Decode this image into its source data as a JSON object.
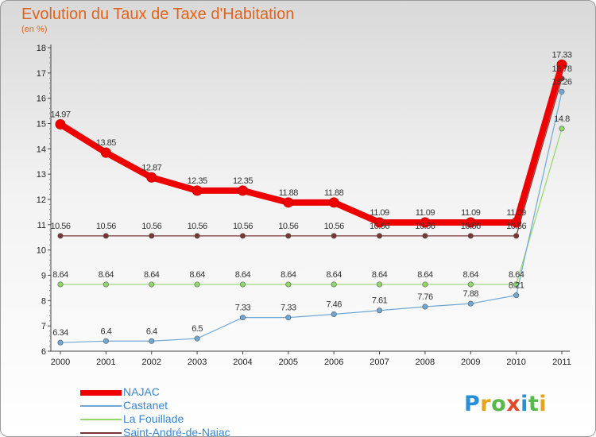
{
  "title": "Evolution du Taux de Taxe d'Habitation",
  "subtitle": "(en %)",
  "brand": {
    "letters": [
      "P",
      "r",
      "o",
      "x",
      "i",
      "t",
      "i"
    ],
    "colors": [
      "#2b8fd8",
      "#e8a21b",
      "#56b94a",
      "#e04a2a",
      "#2b8fd8",
      "#56b94a",
      "#e8a21b"
    ]
  },
  "chart_data": {
    "type": "line",
    "x": [
      "2000",
      "2001",
      "2002",
      "2003",
      "2004",
      "2005",
      "2006",
      "2007",
      "2008",
      "2009",
      "2010",
      "2011"
    ],
    "ylim": [
      6,
      18
    ],
    "yticks": [
      "6",
      "7",
      "8",
      "9",
      "10",
      "11",
      "12",
      "13",
      "14",
      "15",
      "16",
      "17",
      "18"
    ],
    "grid": false,
    "legend_position": "bottom-left",
    "series": [
      {
        "name": "NAJAC",
        "color": "#ee0000",
        "values": [
          14.97,
          13.85,
          12.87,
          12.35,
          12.35,
          11.88,
          11.88,
          11.09,
          11.09,
          11.09,
          11.09,
          17.33
        ],
        "labels": [
          "14.97",
          "13.85",
          "12.87",
          "12.35",
          "12.35",
          "11.88",
          "11.88",
          "11.09",
          "11.09",
          "11.09",
          "11.09",
          "17.33"
        ]
      },
      {
        "name": "Castanet",
        "color": "#6fa8d6",
        "values": [
          6.34,
          6.4,
          6.4,
          6.5,
          7.33,
          7.33,
          7.46,
          7.61,
          7.76,
          7.88,
          8.21,
          16.26
        ],
        "labels": [
          "6.34",
          "6.4",
          "6.4",
          "6.5",
          "7.33",
          "7.33",
          "7.46",
          "7.61",
          "7.76",
          "7.88",
          "8.21",
          "16.26"
        ]
      },
      {
        "name": "La Fouillade",
        "color": "#90d86a",
        "values": [
          8.64,
          8.64,
          8.64,
          8.64,
          8.64,
          8.64,
          8.64,
          8.64,
          8.64,
          8.64,
          8.64,
          14.8
        ],
        "labels": [
          "8.64",
          "8.64",
          "8.64",
          "8.64",
          "8.64",
          "8.64",
          "8.64",
          "8.64",
          "8.64",
          "8.64",
          "8.64",
          "14.8"
        ]
      },
      {
        "name": "Saint-André-de-Najac",
        "color": "#7a3535",
        "values": [
          10.56,
          10.56,
          10.56,
          10.56,
          10.56,
          10.56,
          10.56,
          10.56,
          10.56,
          10.56,
          10.56,
          16.78
        ],
        "labels": [
          "10.56",
          "10.56",
          "10.56",
          "10.56",
          "10.56",
          "10.56",
          "10.56",
          "10.56",
          "10.56",
          "10.56",
          "10.56",
          "16.78"
        ]
      }
    ]
  }
}
